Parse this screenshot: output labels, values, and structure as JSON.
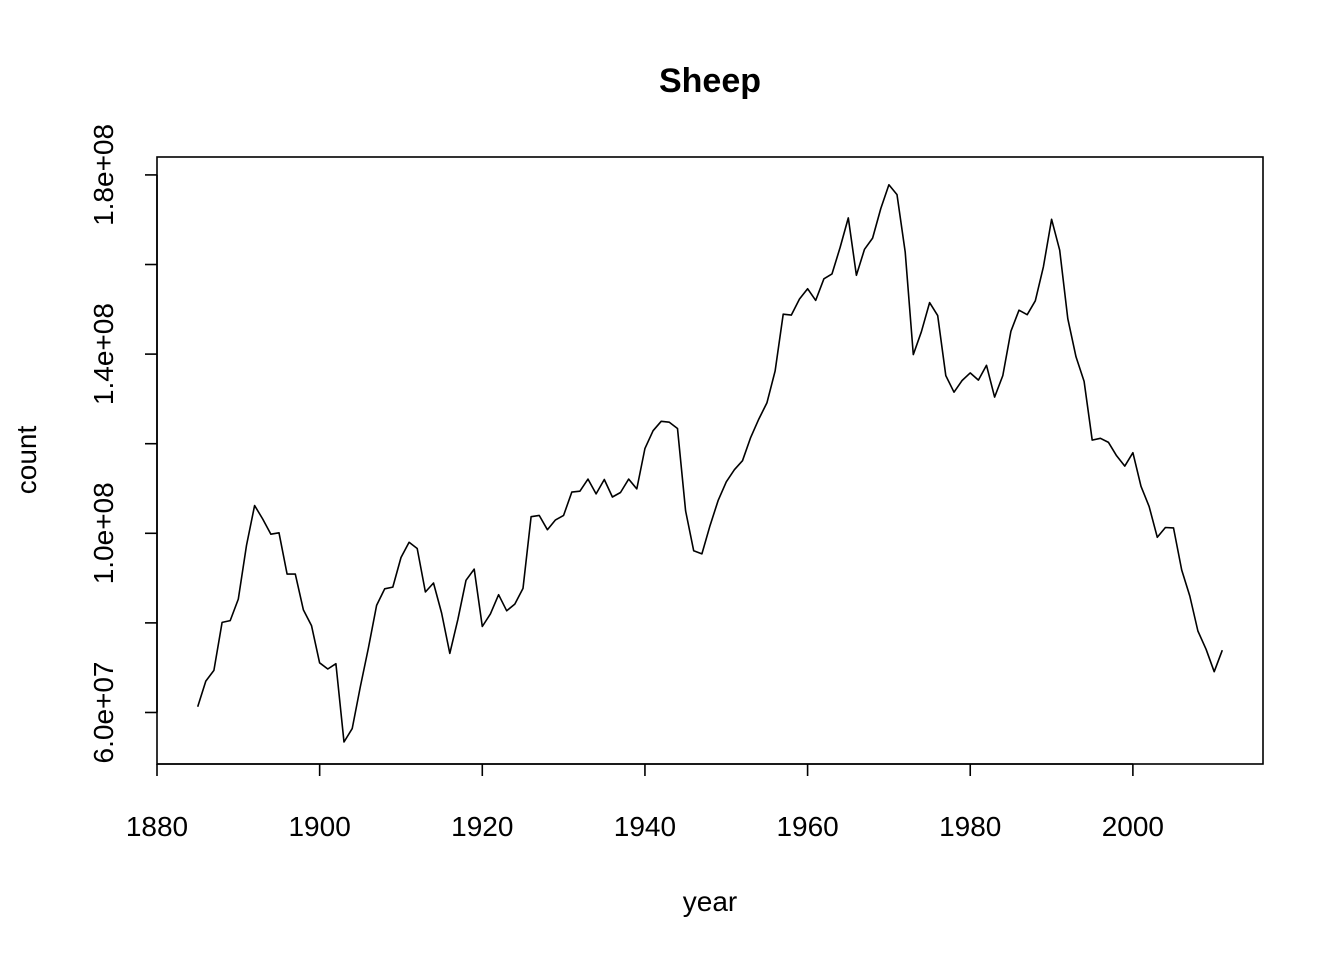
{
  "chart_data": {
    "type": "line",
    "title": "Sheep",
    "xlabel": "year",
    "ylabel": "count",
    "xlim": [
      1880,
      2016
    ],
    "ylim": [
      48500000,
      184000000
    ],
    "x_ticks": [
      1880,
      1900,
      1920,
      1940,
      1960,
      1980,
      2000
    ],
    "x_tick_labels": [
      "1880",
      "1900",
      "1920",
      "1940",
      "1960",
      "1980",
      "2000"
    ],
    "y_ticks": [
      60000000,
      80000000,
      100000000,
      120000000,
      140000000,
      160000000,
      180000000
    ],
    "y_tick_labels": [
      "6.0e+07",
      "",
      "1.0e+08",
      "",
      "1.4e+08",
      "",
      "1.8e+08"
    ],
    "grid": false,
    "series": [
      {
        "color": "#000000",
        "x": [
          1885,
          1886,
          1887,
          1888,
          1889,
          1890,
          1891,
          1892,
          1893,
          1894,
          1895,
          1896,
          1897,
          1898,
          1899,
          1900,
          1901,
          1902,
          1903,
          1904,
          1905,
          1906,
          1907,
          1908,
          1909,
          1910,
          1911,
          1912,
          1913,
          1914,
          1915,
          1916,
          1917,
          1918,
          1919,
          1920,
          1921,
          1922,
          1923,
          1924,
          1925,
          1926,
          1927,
          1928,
          1929,
          1930,
          1931,
          1932,
          1933,
          1934,
          1935,
          1936,
          1937,
          1938,
          1939,
          1940,
          1941,
          1942,
          1943,
          1944,
          1945,
          1946,
          1947,
          1948,
          1949,
          1950,
          1951,
          1952,
          1953,
          1954,
          1955,
          1956,
          1957,
          1958,
          1959,
          1960,
          1961,
          1962,
          1963,
          1964,
          1965,
          1966,
          1967,
          1968,
          1969,
          1970,
          1971,
          1972,
          1973,
          1974,
          1975,
          1976,
          1977,
          1978,
          1979,
          1980,
          1981,
          1982,
          1983,
          1984,
          1985,
          1986,
          1987,
          1988,
          1989,
          1990,
          1991,
          1992,
          1993,
          1994,
          1995,
          1996,
          1997,
          1998,
          1999,
          2000,
          2001,
          2002,
          2003,
          2004,
          2005,
          2006,
          2007,
          2008,
          2009,
          2010,
          2011
        ],
        "values": [
          61300000,
          67000000,
          69400000,
          80100000,
          80500000,
          85300000,
          97300000,
          106200000,
          103200000,
          99800000,
          100100000,
          90900000,
          90900000,
          82900000,
          79400000,
          71100000,
          69700000,
          70900000,
          53400000,
          56400000,
          65700000,
          74400000,
          83900000,
          87600000,
          88000000,
          94600000,
          98000000,
          96600000,
          86900000,
          88900000,
          82200000,
          73200000,
          80800000,
          89500000,
          92000000,
          79200000,
          82000000,
          86300000,
          82700000,
          84200000,
          87700000,
          103700000,
          104000000,
          100800000,
          103000000,
          104000000,
          109200000,
          109400000,
          112100000,
          108800000,
          112000000,
          108100000,
          109100000,
          112100000,
          109900000,
          118900000,
          122900000,
          125000000,
          124800000,
          123400000,
          105000000,
          96100000,
          95400000,
          101700000,
          107300000,
          111500000,
          114200000,
          116200000,
          121400000,
          125500000,
          129100000,
          136200000,
          148900000,
          148700000,
          152300000,
          154600000,
          152000000,
          156800000,
          157900000,
          163800000,
          170400000,
          157600000,
          163400000,
          165900000,
          172500000,
          177800000,
          175600000,
          162800000,
          139900000,
          145000000,
          151500000,
          148600000,
          135200000,
          131500000,
          134100000,
          135800000,
          134200000,
          137500000,
          130400000,
          135200000,
          145100000,
          149800000,
          148800000,
          151900000,
          159500000,
          170100000,
          163200000,
          147900000,
          139400000,
          133900000,
          120800000,
          121200000,
          120300000,
          117300000,
          115000000,
          118000000,
          110500000,
          106000000,
          99100000,
          101300000,
          101200000,
          91800000,
          86000000,
          78200000,
          74100000,
          69100000,
          73900000
        ]
      }
    ]
  }
}
